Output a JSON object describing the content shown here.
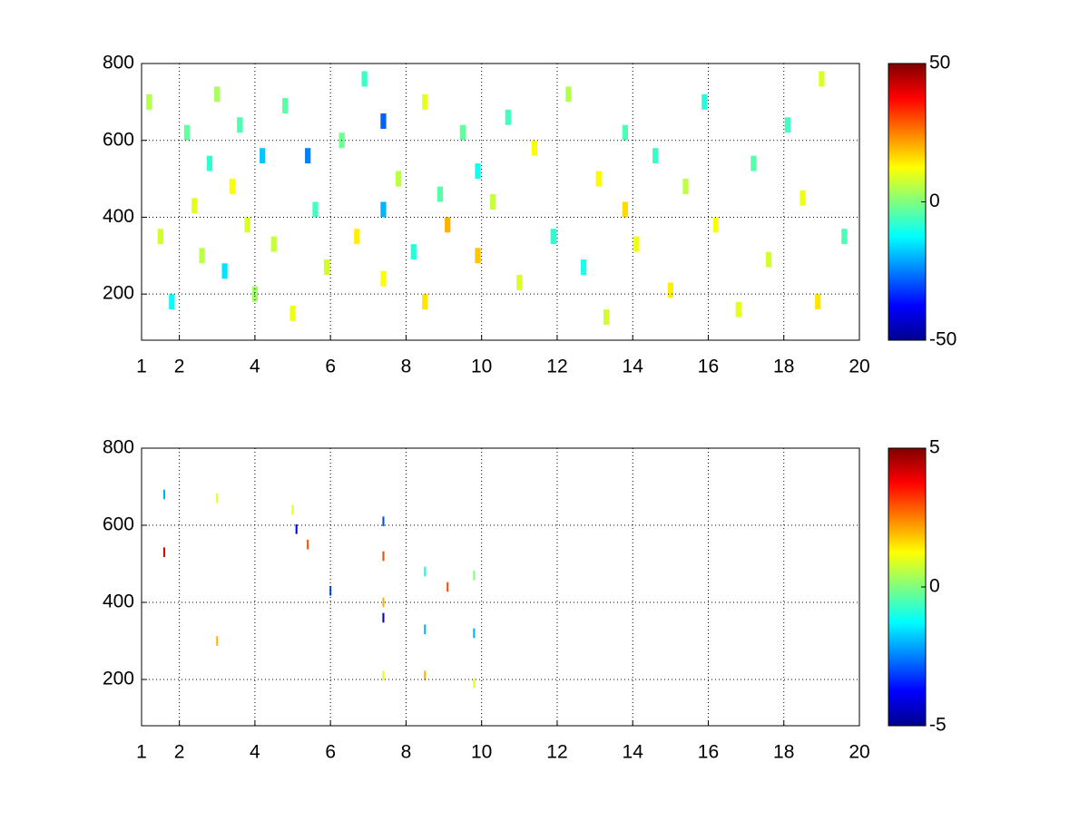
{
  "chart_data": [
    {
      "type": "heatmap",
      "xlim": [
        1,
        20
      ],
      "ylim": [
        80,
        800
      ],
      "xticks": [
        1,
        2,
        4,
        6,
        8,
        10,
        12,
        14,
        16,
        18,
        20
      ],
      "yticks": [
        200,
        400,
        600,
        800
      ],
      "grid": true,
      "colormap": "jet",
      "clim": [
        -50,
        50
      ],
      "cticks": [
        -50,
        0,
        50
      ],
      "x": [
        1.2,
        1.5,
        1.8,
        2.2,
        2.4,
        2.6,
        2.8,
        3.0,
        3.2,
        3.4,
        3.6,
        3.8,
        4.0,
        4.2,
        4.5,
        4.8,
        5.0,
        5.4,
        5.6,
        5.9,
        6.3,
        6.7,
        6.9,
        7.4,
        7.4,
        7.4,
        7.8,
        8.2,
        8.5,
        8.5,
        8.9,
        9.1,
        9.5,
        9.9,
        9.9,
        10.3,
        10.7,
        11.0,
        11.4,
        11.9,
        12.3,
        12.7,
        13.1,
        13.3,
        13.8,
        13.8,
        14.1,
        14.6,
        15.0,
        15.4,
        15.9,
        16.2,
        16.8,
        17.2,
        17.6,
        18.1,
        18.5,
        18.9,
        19.0,
        19.6
      ],
      "y": [
        700,
        350,
        180,
        620,
        430,
        300,
        540,
        720,
        260,
        480,
        640,
        380,
        200,
        560,
        330,
        690,
        150,
        560,
        420,
        270,
        600,
        350,
        760,
        650,
        420,
        240,
        500,
        310,
        700,
        180,
        460,
        380,
        620,
        300,
        520,
        440,
        660,
        230,
        580,
        350,
        720,
        270,
        500,
        140,
        420,
        620,
        330,
        560,
        210,
        480,
        700,
        380,
        160,
        540,
        290,
        640,
        450,
        180,
        760,
        350
      ],
      "values": [
        5,
        8,
        -12,
        -3,
        10,
        6,
        -8,
        4,
        -15,
        12,
        -5,
        9,
        3,
        -18,
        7,
        -4,
        11,
        -25,
        -6,
        8,
        -2,
        14,
        -7,
        -28,
        -20,
        12,
        6,
        -9,
        10,
        15,
        -4,
        20,
        -3,
        18,
        -11,
        7,
        -6,
        9,
        12,
        -8,
        5,
        -10,
        13,
        8,
        16,
        -5,
        11,
        -7,
        14,
        6,
        -9,
        12,
        10,
        -4,
        8,
        -6,
        11,
        15,
        9,
        -5
      ]
    },
    {
      "type": "heatmap",
      "xlim": [
        1,
        20
      ],
      "ylim": [
        80,
        800
      ],
      "xticks": [
        1,
        2,
        4,
        6,
        8,
        10,
        12,
        14,
        16,
        18,
        20
      ],
      "yticks": [
        200,
        400,
        600,
        800
      ],
      "grid": true,
      "colormap": "jet",
      "clim": [
        -5,
        5
      ],
      "cticks": [
        -5,
        0,
        5
      ],
      "x": [
        1.6,
        1.6,
        3.0,
        3.0,
        5.0,
        5.1,
        5.4,
        6.0,
        7.4,
        7.4,
        7.4,
        7.4,
        7.4,
        8.5,
        8.5,
        8.5,
        9.1,
        9.8,
        9.8,
        9.8
      ],
      "y": [
        680,
        530,
        670,
        300,
        640,
        590,
        550,
        430,
        610,
        520,
        400,
        360,
        210,
        480,
        330,
        210,
        440,
        470,
        320,
        190
      ],
      "values": [
        -2,
        4,
        1,
        2,
        1,
        -4,
        3,
        -3,
        -3,
        3,
        2,
        -4,
        1,
        -1,
        -2,
        2,
        3,
        0,
        -2,
        1
      ]
    }
  ]
}
